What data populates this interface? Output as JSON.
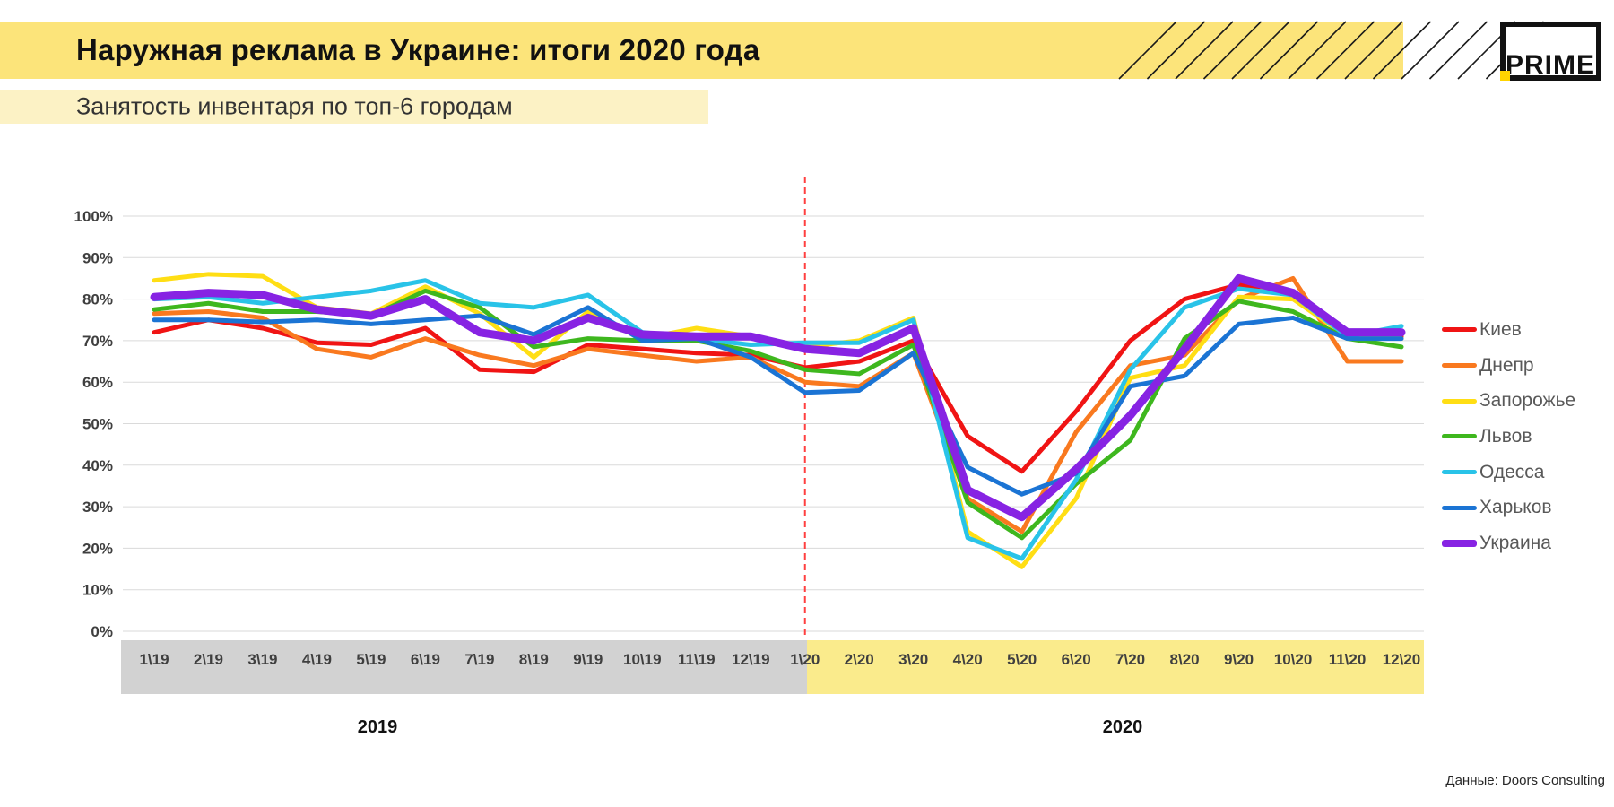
{
  "header": {
    "title": "Наружная реклама в Украине: итоги 2020 года",
    "bar_color": "#FCE47A",
    "logo_text": "PRIME",
    "logo_accent_color": "#FFD400"
  },
  "subtitle": {
    "text": "Занятость инвентаря по топ-6 городам",
    "bar_color": "#FCF2C5"
  },
  "source_note": "Данные: Doors Consulting",
  "chart_data": {
    "type": "line",
    "title": "Занятость инвентаря по топ-6 городам",
    "categories": [
      "1\\19",
      "2\\19",
      "3\\19",
      "4\\19",
      "5\\19",
      "6\\19",
      "7\\19",
      "8\\19",
      "9\\19",
      "10\\19",
      "11\\19",
      "12\\19",
      "1\\20",
      "2\\20",
      "3\\20",
      "4\\20",
      "5\\20",
      "6\\20",
      "7\\20",
      "8\\20",
      "9\\20",
      "10\\20",
      "11\\20",
      "12\\20"
    ],
    "series": [
      {
        "name": "Киев",
        "color": "#F01414",
        "width": 5,
        "values": [
          72,
          75,
          73,
          69.5,
          69,
          73,
          63,
          62.5,
          69,
          68,
          67,
          66.5,
          63.5,
          65,
          70,
          47,
          38.5,
          53,
          70,
          80,
          83.5,
          81,
          71.5,
          71
        ]
      },
      {
        "name": "Днепр",
        "color": "#F9791F",
        "width": 5,
        "values": [
          76.5,
          77,
          75.5,
          68,
          66,
          70.5,
          66.5,
          64,
          68,
          66.5,
          65,
          66,
          60,
          59,
          67,
          32,
          24,
          48,
          64,
          66.5,
          80,
          85,
          65,
          65
        ]
      },
      {
        "name": "Запорожье",
        "color": "#FFDE14",
        "width": 5,
        "values": [
          84.5,
          86,
          85.5,
          78,
          76.5,
          83,
          76.5,
          66,
          77,
          70.5,
          73,
          71,
          68.5,
          70,
          75.5,
          24,
          15.5,
          32,
          61,
          64,
          80.5,
          80,
          71,
          70.5
        ]
      },
      {
        "name": "Львов",
        "color": "#3EB71E",
        "width": 5,
        "values": [
          77.5,
          79,
          77,
          77,
          76,
          82,
          78,
          68.5,
          70.5,
          70,
          70,
          67.5,
          63,
          62,
          69,
          31,
          22.5,
          35.5,
          46,
          70.5,
          79.5,
          77,
          70.5,
          68.5
        ]
      },
      {
        "name": "Одесса",
        "color": "#29C3E8",
        "width": 5,
        "values": [
          80,
          80.5,
          79,
          80.5,
          82,
          84.5,
          79,
          78,
          81,
          72,
          70.5,
          69,
          69.5,
          69.5,
          75,
          22.5,
          17.5,
          36.5,
          63,
          78,
          82.5,
          81,
          71,
          73.5
        ]
      },
      {
        "name": "Харьков",
        "color": "#1B74D4",
        "width": 5,
        "values": [
          75,
          75,
          74.5,
          75,
          74,
          75,
          76,
          71.5,
          78,
          70,
          70.5,
          66,
          57.5,
          58,
          67,
          39.5,
          33,
          38,
          59,
          61.5,
          74,
          75.5,
          70.5,
          70.5
        ]
      },
      {
        "name": "Украина",
        "color": "#8723E3",
        "width": 9,
        "values": [
          80.5,
          81.5,
          81,
          77.5,
          76,
          80,
          72,
          70,
          75.5,
          71.5,
          71,
          71,
          68,
          67,
          73,
          34,
          27.5,
          39,
          52,
          68,
          85,
          81.5,
          72,
          72
        ]
      }
    ],
    "yticks": [
      "0%",
      "10%",
      "20%",
      "30%",
      "40%",
      "50%",
      "60%",
      "70%",
      "80%",
      "90%",
      "100%"
    ],
    "ylim": [
      0,
      100
    ],
    "grid": "horizontal",
    "legend_position": "right",
    "period_labels": {
      "left": "2019",
      "right": "2020"
    },
    "x_band": {
      "gray_color": "#D2D2D2",
      "yellow_color": "#FAEB8C",
      "split_index": 12
    },
    "divider_line": {
      "at_category": "1\\20",
      "color": "#FF4040",
      "style": "dashed"
    }
  }
}
